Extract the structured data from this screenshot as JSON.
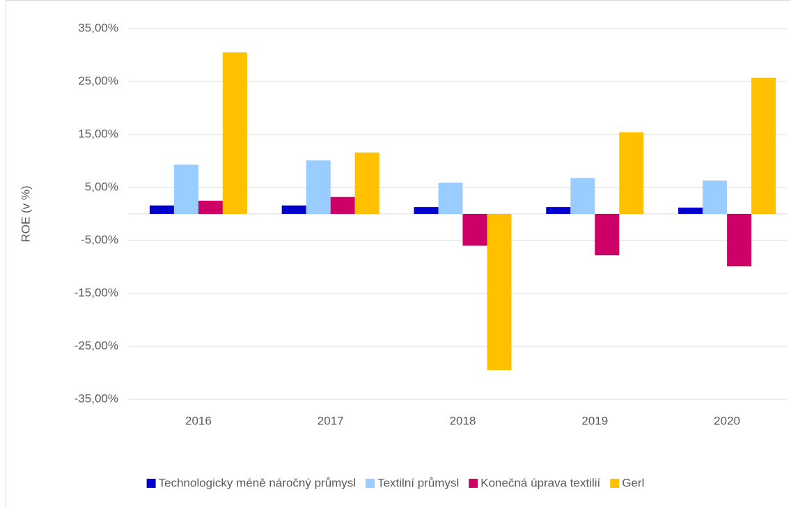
{
  "chart_data": {
    "type": "bar",
    "ylabel": "ROE (v %)",
    "categories": [
      "2016",
      "2017",
      "2018",
      "2019",
      "2020"
    ],
    "series": [
      {
        "name": "Technologicky méně náročný průmysl",
        "color": "#0000cc",
        "values": [
          1.6,
          1.6,
          1.3,
          1.3,
          1.2
        ]
      },
      {
        "name": "Textilní průmysl",
        "color": "#99ccff",
        "values": [
          9.3,
          10.1,
          5.9,
          6.8,
          6.3
        ]
      },
      {
        "name": "Konečná úprava textilií",
        "color": "#cc0066",
        "values": [
          2.5,
          3.2,
          -6.0,
          -7.8,
          -9.9
        ]
      },
      {
        "name": "Gerl",
        "color": "#ffc000",
        "values": [
          30.5,
          11.6,
          -29.5,
          15.4,
          25.7
        ]
      }
    ],
    "ylim": [
      -35,
      35
    ],
    "yticks": [
      {
        "value": -35,
        "label": "-35,00%"
      },
      {
        "value": -25,
        "label": "-25,00%"
      },
      {
        "value": -15,
        "label": "-15,00%"
      },
      {
        "value": -5,
        "label": "-5,00%"
      },
      {
        "value": 5,
        "label": "5,00%"
      },
      {
        "value": 15,
        "label": "15,00%"
      },
      {
        "value": 25,
        "label": "25,00%"
      },
      {
        "value": 35,
        "label": "35,00%"
      }
    ],
    "grid": true,
    "legend": "bottom"
  }
}
